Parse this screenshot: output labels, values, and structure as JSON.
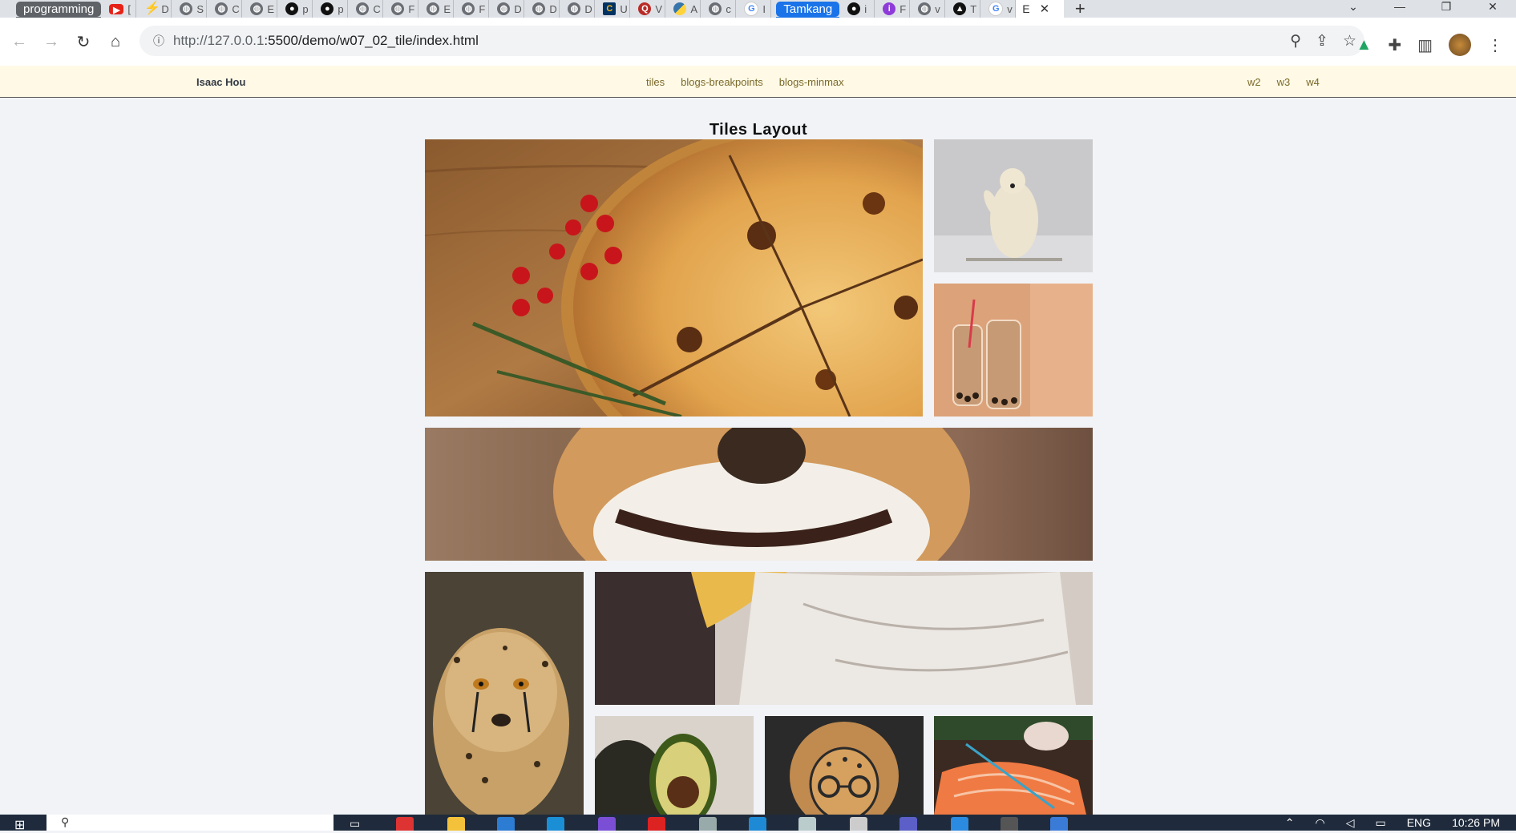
{
  "tabs": {
    "group_left": "programming",
    "group_right": "Tamkang",
    "tab_letters": [
      "[",
      "D",
      "S",
      "C",
      "E",
      "p",
      "p",
      "C",
      "F",
      "E",
      "F",
      "D",
      "D",
      "D",
      "U",
      "V",
      "A",
      "c",
      "I",
      "i",
      "F",
      "v",
      "T",
      "v"
    ],
    "active_tab_letter": "E",
    "active_close": "✕",
    "new_tab": "+"
  },
  "address_bar": {
    "url_host": "http://127.0.0.1",
    "url_rest": ":5500/demo/w07_02_tile/index.html"
  },
  "site_nav": {
    "brand": "Isaac Hou",
    "center_links": [
      "tiles",
      "blogs-breakpoints",
      "blogs-minmax"
    ],
    "right_links": [
      "w2",
      "w3",
      "w4"
    ]
  },
  "page": {
    "title": "Tiles Layout"
  },
  "taskbar": {
    "lang": "ENG",
    "time": "10:26 PM"
  },
  "colors": {
    "accent": "#1a73e8",
    "nav_bg": "#fff9e6",
    "page_bg": "#f1f3f7"
  }
}
